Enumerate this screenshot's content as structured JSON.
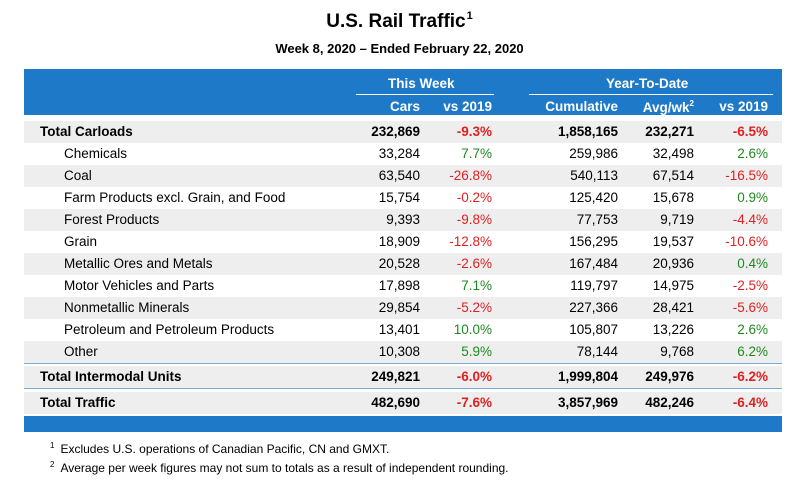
{
  "title": "U.S. Rail Traffic",
  "title_sup": "1",
  "subtitle": "Week 8, 2020 – Ended February 22, 2020",
  "headers": {
    "this_week": "This Week",
    "ytd": "Year-To-Date",
    "cars": "Cars",
    "vs2019": "vs 2019",
    "cumulative": "Cumulative",
    "avgwk": "Avg/wk",
    "avgwk_sup": "2",
    "vs2019_ytd": "vs 2019"
  },
  "rows": [
    {
      "label": "Total Carloads",
      "cars": "232,869",
      "vs": "-9.3%",
      "cum": "1,858,165",
      "avg": "232,271",
      "vsy": "-6.5%"
    },
    {
      "label": "Chemicals",
      "cars": "33,284",
      "vs": "7.7%",
      "cum": "259,986",
      "avg": "32,498",
      "vsy": "2.6%"
    },
    {
      "label": "Coal",
      "cars": "63,540",
      "vs": "-26.8%",
      "cum": "540,113",
      "avg": "67,514",
      "vsy": "-16.5%"
    },
    {
      "label": "Farm Products excl. Grain, and Food",
      "cars": "15,754",
      "vs": "-0.2%",
      "cum": "125,420",
      "avg": "15,678",
      "vsy": "0.9%"
    },
    {
      "label": "Forest Products",
      "cars": "9,393",
      "vs": "-9.8%",
      "cum": "77,753",
      "avg": "9,719",
      "vsy": "-4.4%"
    },
    {
      "label": "Grain",
      "cars": "18,909",
      "vs": "-12.8%",
      "cum": "156,295",
      "avg": "19,537",
      "vsy": "-10.6%"
    },
    {
      "label": "Metallic Ores and Metals",
      "cars": "20,528",
      "vs": "-2.6%",
      "cum": "167,484",
      "avg": "20,936",
      "vsy": "0.4%"
    },
    {
      "label": "Motor Vehicles and Parts",
      "cars": "17,898",
      "vs": "7.1%",
      "cum": "119,797",
      "avg": "14,975",
      "vsy": "-2.5%"
    },
    {
      "label": "Nonmetallic Minerals",
      "cars": "29,854",
      "vs": "-5.2%",
      "cum": "227,366",
      "avg": "28,421",
      "vsy": "-5.6%"
    },
    {
      "label": "Petroleum and Petroleum Products",
      "cars": "13,401",
      "vs": "10.0%",
      "cum": "105,807",
      "avg": "13,226",
      "vsy": "2.6%"
    },
    {
      "label": "Other",
      "cars": "10,308",
      "vs": "5.9%",
      "cum": "78,144",
      "avg": "9,768",
      "vsy": "6.2%"
    },
    {
      "label": "Total Intermodal Units",
      "cars": "249,821",
      "vs": "-6.0%",
      "cum": "1,999,804",
      "avg": "249,976",
      "vsy": "-6.2%"
    },
    {
      "label": "Total Traffic",
      "cars": "482,690",
      "vs": "-7.6%",
      "cum": "3,857,969",
      "avg": "482,246",
      "vsy": "-6.4%"
    }
  ],
  "footnotes": [
    {
      "mark": "1",
      "text": "Excludes U.S. operations of Canadian Pacific, CN and GMXT."
    },
    {
      "mark": "2",
      "text": "Average per week figures may not sum to totals as a result of independent rounding."
    }
  ],
  "colors": {
    "header_band": "#1e7ac8",
    "negative": "#e02020",
    "positive": "#1f8a1f",
    "row_shade": "#eeeeee"
  }
}
